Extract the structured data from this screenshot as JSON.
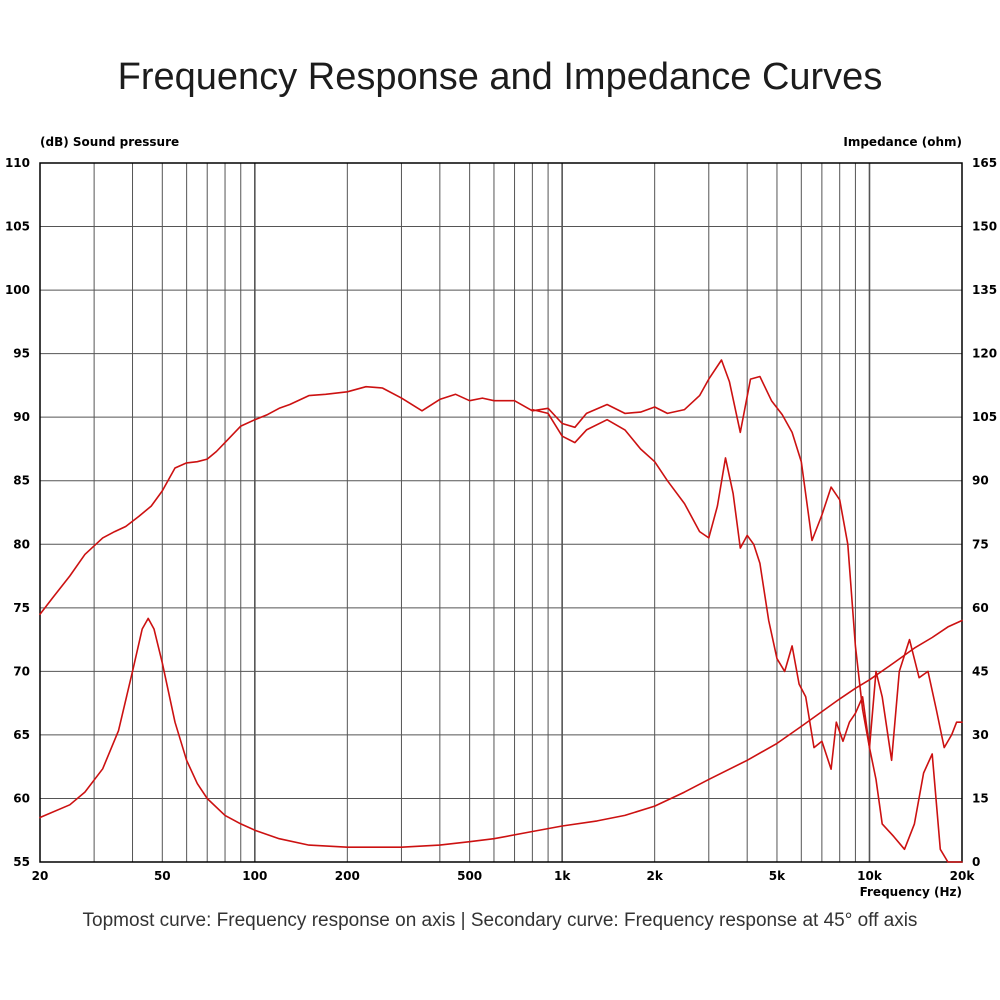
{
  "title": "Frequency Response and Impedance Curves",
  "caption": "Topmost curve: Frequency response on axis | Secondary curve: Frequency response at 45° off axis",
  "colors": {
    "curve": "#cc1111",
    "grid": "#555555",
    "axis": "#000000"
  },
  "chart_data": {
    "type": "line",
    "xscale": "log",
    "xlim": [
      20,
      20000
    ],
    "ylim_left": [
      55,
      110
    ],
    "ylim_right": [
      0,
      165
    ],
    "ylabel_left": "(dB)  Sound pressure",
    "ylabel_right": "Impedance  (ohm)",
    "xlabel": "Frequency  (Hz)",
    "x_ticks": [
      {
        "v": 20,
        "label": "20"
      },
      {
        "v": 50,
        "label": "50"
      },
      {
        "v": 100,
        "label": "100"
      },
      {
        "v": 200,
        "label": "200"
      },
      {
        "v": 500,
        "label": "500"
      },
      {
        "v": 1000,
        "label": "1k"
      },
      {
        "v": 2000,
        "label": "2k"
      },
      {
        "v": 5000,
        "label": "5k"
      },
      {
        "v": 10000,
        "label": "10k"
      },
      {
        "v": 20000,
        "label": "20k"
      }
    ],
    "y_ticks_left": [
      {
        "v": 110,
        "label": "110"
      },
      {
        "v": 105,
        "label": "105"
      },
      {
        "v": 100,
        "label": "100"
      },
      {
        "v": 95,
        "label": "95"
      },
      {
        "v": 90,
        "label": "90"
      },
      {
        "v": 85,
        "label": "85"
      },
      {
        "v": 80,
        "label": "80"
      },
      {
        "v": 75,
        "label": "75"
      },
      {
        "v": 70,
        "label": "70"
      },
      {
        "v": 65,
        "label": "65"
      },
      {
        "v": 60,
        "label": "60"
      },
      {
        "v": 55,
        "label": "55"
      }
    ],
    "y_ticks_right": [
      {
        "v": 165,
        "label": "165"
      },
      {
        "v": 150,
        "label": "150"
      },
      {
        "v": 135,
        "label": "135"
      },
      {
        "v": 120,
        "label": "120"
      },
      {
        "v": 105,
        "label": "105"
      },
      {
        "v": 90,
        "label": "90"
      },
      {
        "v": 75,
        "label": "75"
      },
      {
        "v": 60,
        "label": "60"
      },
      {
        "v": 45,
        "label": "45"
      },
      {
        "v": 30,
        "label": "30"
      },
      {
        "v": 15,
        "label": "15"
      },
      {
        "v": 0,
        "label": "0"
      }
    ],
    "series": [
      {
        "name": "Frequency response on axis",
        "axis": "left",
        "x": [
          20,
          22,
          25,
          28,
          32,
          35,
          38,
          42,
          46,
          50,
          55,
          60,
          65,
          70,
          75,
          80,
          90,
          100,
          110,
          120,
          130,
          150,
          170,
          200,
          230,
          260,
          300,
          350,
          400,
          450,
          500,
          550,
          600,
          700,
          800,
          900,
          1000,
          1100,
          1200,
          1400,
          1600,
          1800,
          2000,
          2200,
          2500,
          2800,
          3000,
          3300,
          3500,
          3800,
          4100,
          4400,
          4800,
          5200,
          5600,
          6000,
          6500,
          7000,
          7500,
          8000,
          8500,
          9000,
          9500,
          10000,
          10500,
          11000,
          12000,
          13000,
          14000,
          15000,
          16000,
          17000,
          18000,
          19000,
          20000
        ],
        "y": [
          74.5,
          75.8,
          77.5,
          79.2,
          80.5,
          81.0,
          81.4,
          82.2,
          83.0,
          84.2,
          86.0,
          86.4,
          86.5,
          86.7,
          87.3,
          88.0,
          89.3,
          89.8,
          90.2,
          90.7,
          91.0,
          91.7,
          91.8,
          92.0,
          92.4,
          92.3,
          91.5,
          90.5,
          91.4,
          91.8,
          91.3,
          91.5,
          91.3,
          91.3,
          90.5,
          90.7,
          89.5,
          89.2,
          90.3,
          91.0,
          90.3,
          90.4,
          90.8,
          90.3,
          90.6,
          91.7,
          93.0,
          94.5,
          92.8,
          88.8,
          93.0,
          93.2,
          91.3,
          90.2,
          88.8,
          86.5,
          80.3,
          82.3,
          84.5,
          83.5,
          80.0,
          72.0,
          67.0,
          64.0,
          61.5,
          58.0,
          57.0,
          56.0,
          58.0,
          62.0,
          63.5,
          56.0,
          55.0,
          55.0,
          55.0
        ]
      },
      {
        "name": "Frequency response at 45° off axis",
        "axis": "left",
        "x": [
          800,
          900,
          1000,
          1100,
          1200,
          1400,
          1600,
          1800,
          2000,
          2200,
          2500,
          2800,
          3000,
          3200,
          3400,
          3600,
          3800,
          4000,
          4200,
          4400,
          4700,
          5000,
          5300,
          5600,
          5900,
          6200,
          6600,
          7000,
          7500,
          7800,
          8200,
          8600,
          9000,
          9500,
          10000,
          10500,
          11000,
          11800,
          12500,
          13500,
          14500,
          15500,
          16500,
          17500,
          18500,
          19200,
          20000
        ],
        "y": [
          90.6,
          90.3,
          88.5,
          88.0,
          89.0,
          89.8,
          89.0,
          87.5,
          86.5,
          85.0,
          83.2,
          81.0,
          80.5,
          83.0,
          86.8,
          84.0,
          79.7,
          80.7,
          80.0,
          78.5,
          74.0,
          71.0,
          70.0,
          72.0,
          69.0,
          68.0,
          64.0,
          64.5,
          62.3,
          66.0,
          64.5,
          66.0,
          66.7,
          68.0,
          64.0,
          70.0,
          68.0,
          63.0,
          70.0,
          72.5,
          69.5,
          70.0,
          67.0,
          64.0,
          65.0,
          66.0,
          66.0
        ]
      },
      {
        "name": "Impedance",
        "axis": "right",
        "x": [
          20,
          25,
          28,
          32,
          36,
          40,
          43,
          45,
          47,
          50,
          55,
          60,
          65,
          70,
          80,
          90,
          100,
          120,
          150,
          200,
          250,
          300,
          400,
          500,
          600,
          800,
          1000,
          1300,
          1600,
          2000,
          2500,
          3000,
          4000,
          5000,
          6000,
          7000,
          8000,
          9000,
          10000,
          12000,
          14000,
          16000,
          18000,
          20000
        ],
        "y": [
          10.5,
          13.5,
          16.5,
          22.0,
          31.0,
          45.0,
          55.0,
          57.5,
          55.0,
          47.0,
          33.0,
          24.0,
          18.5,
          15.0,
          11.0,
          9.0,
          7.5,
          5.5,
          4.0,
          3.5,
          3.5,
          3.5,
          4.0,
          4.8,
          5.5,
          7.2,
          8.5,
          9.7,
          11.0,
          13.2,
          16.5,
          19.5,
          24.0,
          28.0,
          32.0,
          35.5,
          38.5,
          41.0,
          43.0,
          47.0,
          50.5,
          53.0,
          55.5,
          57.0
        ]
      }
    ]
  }
}
